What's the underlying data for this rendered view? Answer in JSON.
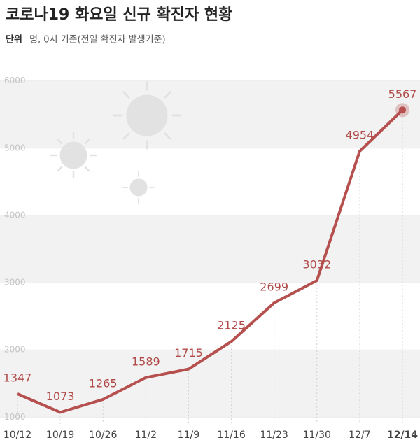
{
  "chart_data": {
    "type": "line",
    "title": "코로나19 화요일 신규 확진자 현황",
    "unit_label": "단위",
    "subtitle": "명, 0시 기준(전일 확진자 발생기준)",
    "categories": [
      "10/12",
      "10/19",
      "10/26",
      "11/2",
      "11/9",
      "11/16",
      "11/23",
      "11/30",
      "12/7",
      "12/14"
    ],
    "values": [
      1347,
      1073,
      1265,
      1589,
      1715,
      2125,
      2699,
      3032,
      4954,
      5567
    ],
    "color": "#b5504f",
    "ylim": [
      900,
      6100
    ],
    "yticks": [
      1000,
      2000,
      3000,
      4000,
      5000,
      6000
    ],
    "grid": true
  }
}
